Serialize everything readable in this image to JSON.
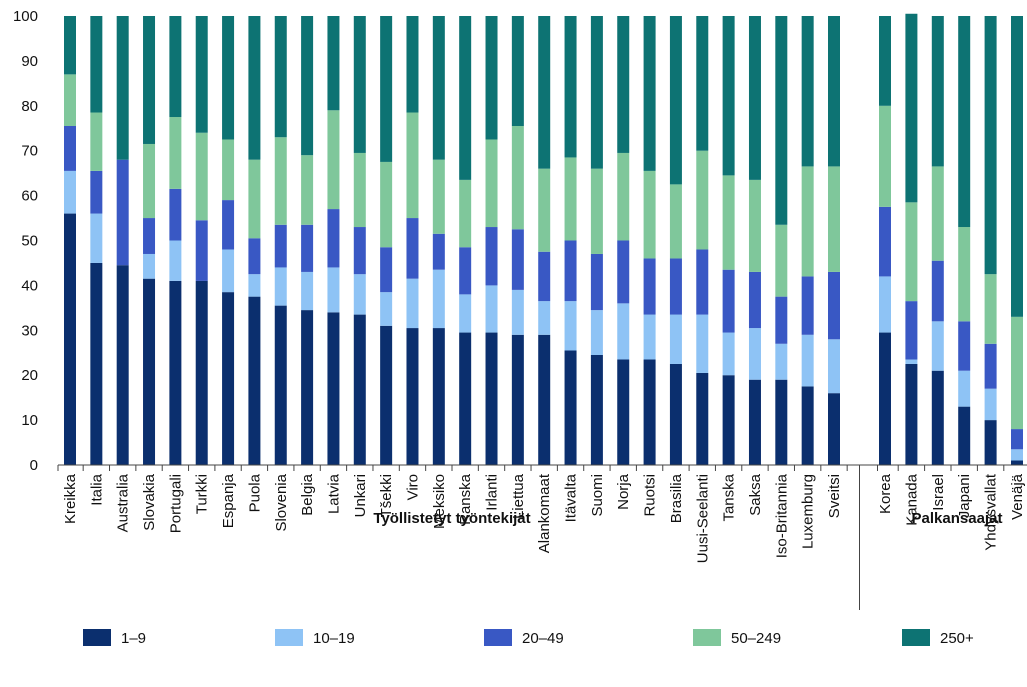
{
  "chart_data": {
    "type": "bar",
    "stacked": true,
    "ylim": [
      0,
      100
    ],
    "yticks": [
      0,
      10,
      20,
      30,
      40,
      50,
      60,
      70,
      80,
      90,
      100
    ],
    "grid": false,
    "legend_position": "bottom",
    "groups": [
      {
        "title": "Työllistetyt työntekijät",
        "categories": [
          "Kreikka",
          "Italia",
          "Australia",
          "Slovakia",
          "Portugali",
          "Turkki",
          "Espanja",
          "Puola",
          "Slovenia",
          "Belgia",
          "Latvia",
          "Unkari",
          "Tšekki",
          "Viro",
          "Meksiko",
          "Ranska",
          "Irlanti",
          "Liettua",
          "Alankomaat",
          "Itävalta",
          "Suomi",
          "Norja",
          "Ruotsi",
          "Brasilia",
          "Uusi-Seelanti",
          "Tanska",
          "Saksa",
          "Iso-Britannia",
          "Luxemburg",
          "Sveitsi"
        ]
      },
      {
        "title": "Palkansaajat",
        "categories": [
          "Korea",
          "Kanada",
          "Israel",
          "Japani",
          "Yhdysvallat",
          "Venäjä"
        ]
      }
    ],
    "series": [
      {
        "name": "1–9",
        "color": "#0b2f6e",
        "values": [
          56,
          45,
          44.5,
          41.5,
          41,
          41,
          38.5,
          37.5,
          35.5,
          34.5,
          34,
          33.5,
          31,
          30.5,
          30.5,
          29.5,
          29.5,
          29,
          29,
          25.5,
          24.5,
          23.5,
          23.5,
          22.5,
          20.5,
          20,
          19,
          19,
          17.5,
          16,
          29.5,
          22.5,
          21,
          13,
          10,
          1
        ]
      },
      {
        "name": "10–19",
        "color": "#8ec3f5",
        "values": [
          9.5,
          11,
          0,
          5.5,
          9,
          0,
          9.5,
          5,
          8.5,
          8.5,
          10,
          9,
          7.5,
          11,
          13,
          8.5,
          10.5,
          10,
          7.5,
          11,
          10,
          12.5,
          10,
          11,
          13,
          9.5,
          11.5,
          8,
          11.5,
          12,
          12.5,
          1,
          11,
          8,
          7,
          2.5
        ]
      },
      {
        "name": "20–49",
        "color": "#3958c4",
        "values": [
          10,
          9.5,
          23.5,
          8,
          11.5,
          13.5,
          11,
          8,
          9.5,
          10.5,
          13,
          10.5,
          10,
          13.5,
          8,
          10.5,
          13,
          13.5,
          11,
          13.5,
          12.5,
          14,
          12.5,
          12.5,
          14.5,
          14,
          12.5,
          10.5,
          13,
          15,
          15.5,
          13,
          13.5,
          11,
          10,
          4.5
        ]
      },
      {
        "name": "50–249",
        "color": "#7fc79b",
        "values": [
          11.5,
          13,
          0,
          16.5,
          16,
          19.5,
          13.5,
          17.5,
          19.5,
          15.5,
          22,
          16.5,
          19,
          23.5,
          16.5,
          15,
          19.5,
          23,
          18.5,
          18.5,
          19,
          19.5,
          19.5,
          16.5,
          22,
          21,
          20.5,
          16,
          24.5,
          23.5,
          22.5,
          22,
          21,
          21,
          15.5,
          25
        ]
      },
      {
        "name": "250+",
        "color": "#0d7373",
        "values": [
          13,
          21.5,
          32,
          28.5,
          22.5,
          26,
          27.5,
          32,
          27,
          31,
          21,
          30.5,
          32.5,
          21.5,
          32,
          36.5,
          27.5,
          24.5,
          34,
          31.5,
          34,
          30.5,
          34.5,
          37.5,
          30,
          35.5,
          36.5,
          46.5,
          33.5,
          33.5,
          20,
          42,
          33.5,
          47,
          57.5,
          67
        ]
      }
    ]
  }
}
